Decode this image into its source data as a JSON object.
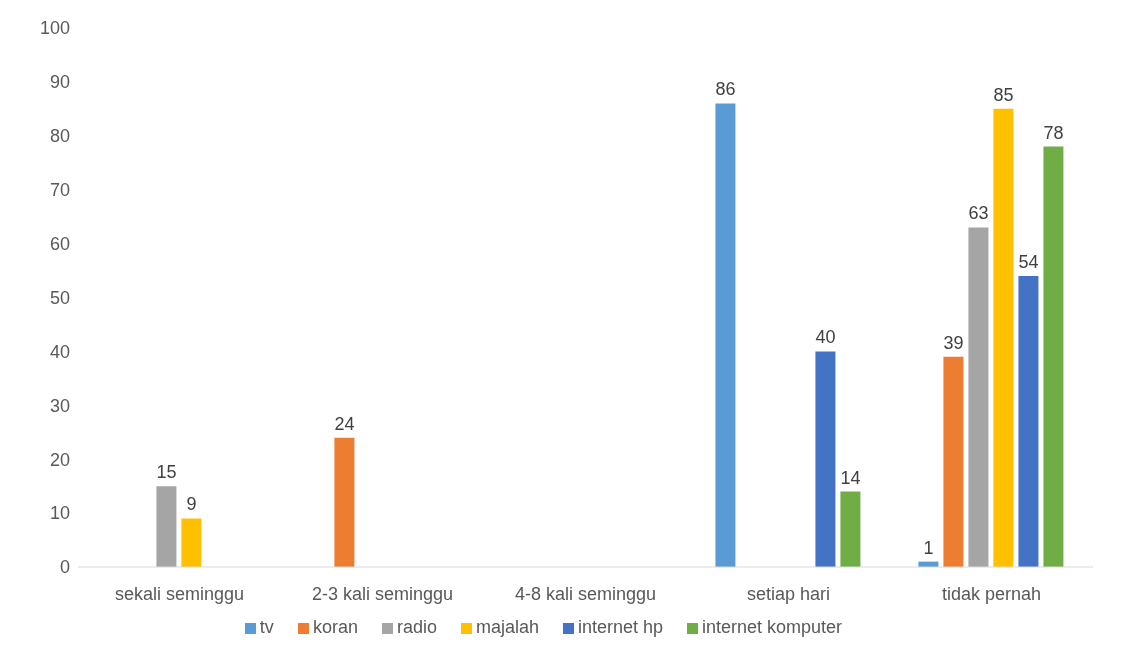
{
  "chart_data": {
    "type": "bar",
    "categories": [
      "sekali seminggu",
      "2-3 kali seminggu",
      "4-8 kali seminggu",
      "setiap hari",
      "tidak pernah"
    ],
    "series": [
      {
        "name": "tv",
        "color": "#5b9bd5",
        "values": [
          null,
          null,
          null,
          86,
          1
        ]
      },
      {
        "name": "koran",
        "color": "#ed7d31",
        "values": [
          null,
          24,
          null,
          null,
          39
        ]
      },
      {
        "name": "radio",
        "color": "#a5a5a5",
        "values": [
          15,
          null,
          null,
          null,
          63
        ]
      },
      {
        "name": "majalah",
        "color": "#ffc000",
        "values": [
          9,
          null,
          null,
          null,
          85
        ]
      },
      {
        "name": "internet hp",
        "color": "#4472c4",
        "values": [
          null,
          null,
          null,
          40,
          54
        ]
      },
      {
        "name": "internet komputer",
        "color": "#70ad47",
        "values": [
          null,
          null,
          null,
          14,
          78
        ]
      }
    ],
    "ylim": [
      0,
      100
    ],
    "yticks": [
      0,
      10,
      20,
      30,
      40,
      50,
      60,
      70,
      80,
      90,
      100
    ],
    "data_labels": true,
    "legend": "bottom",
    "grid": false
  }
}
